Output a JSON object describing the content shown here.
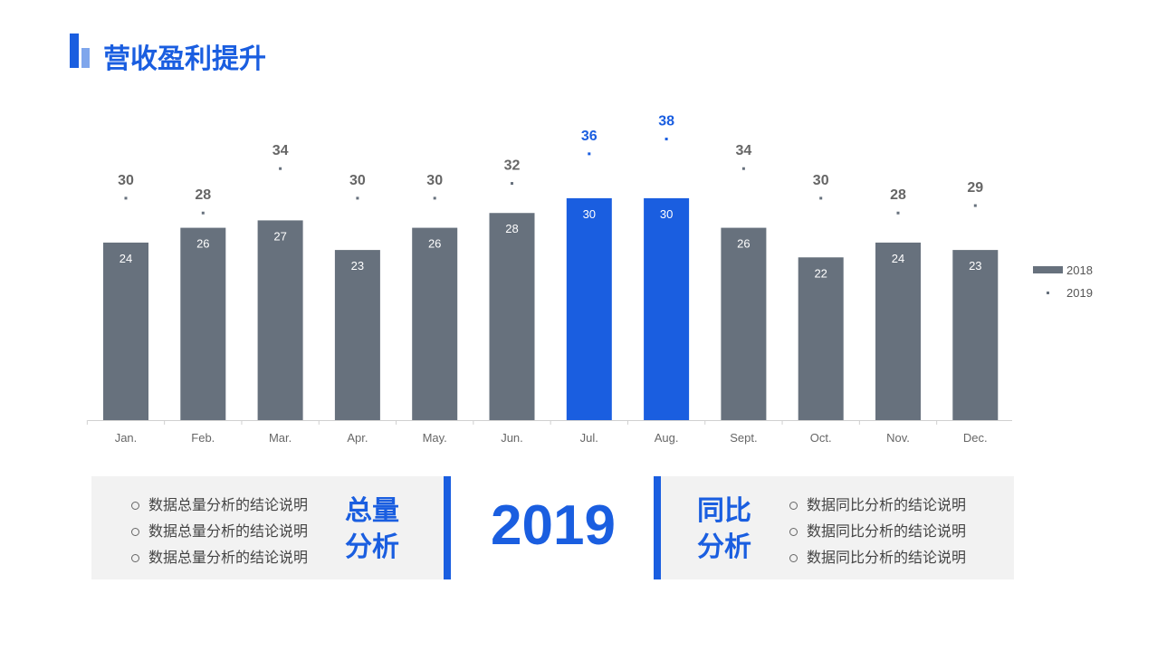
{
  "title": "营收盈利提升",
  "colors": {
    "accent": "#1a5ee0",
    "bar": "#67717d"
  },
  "chart_data": {
    "type": "bar",
    "categories": [
      "Jan.",
      "Feb.",
      "Mar.",
      "Apr.",
      "May.",
      "Jun.",
      "Jul.",
      "Aug.",
      "Sept.",
      "Oct.",
      "Nov.",
      "Dec."
    ],
    "series": [
      {
        "name": "2018",
        "type": "bar",
        "values": [
          24,
          26,
          27,
          23,
          26,
          28,
          30,
          30,
          26,
          22,
          24,
          23
        ]
      },
      {
        "name": "2019",
        "type": "scatter",
        "values": [
          30,
          28,
          34,
          30,
          30,
          32,
          36,
          38,
          34,
          30,
          28,
          29
        ]
      }
    ],
    "highlight": [
      "Jul.",
      "Aug."
    ],
    "legend": "right",
    "ylim": [
      0,
      40
    ],
    "grid": false
  },
  "panel": {
    "year": "2019",
    "left": {
      "heading": [
        "总量",
        "分析"
      ],
      "items": [
        "数据总量分析的结论说明",
        "数据总量分析的结论说明",
        "数据总量分析的结论说明"
      ]
    },
    "right": {
      "heading": [
        "同比",
        "分析"
      ],
      "items": [
        "数据同比分析的结论说明",
        "数据同比分析的结论说明",
        "数据同比分析的结论说明"
      ]
    }
  }
}
